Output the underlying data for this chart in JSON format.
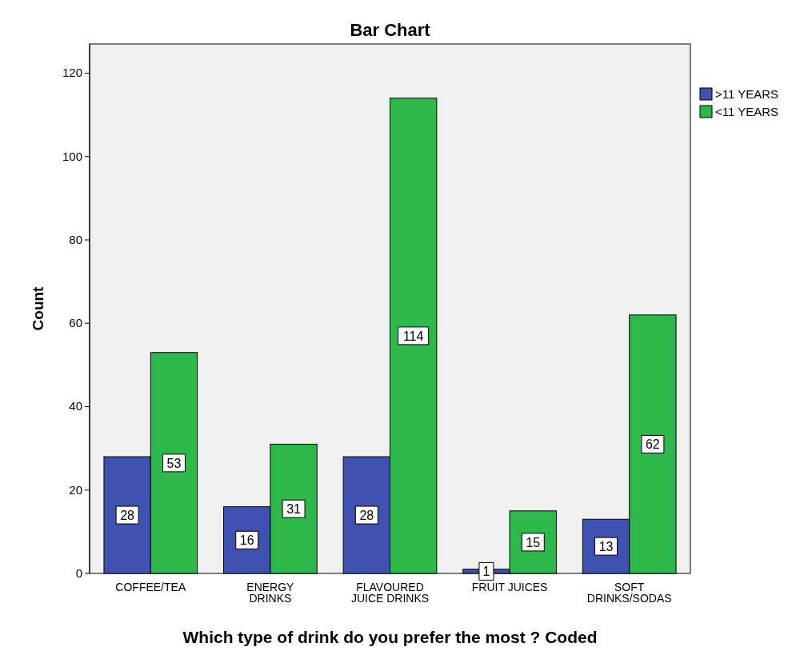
{
  "chart_data": {
    "type": "bar",
    "title": "Bar Chart",
    "xlabel": "Which type of drink do you prefer the most ? Coded",
    "ylabel": "Count",
    "categories": [
      "COFFEE/TEA",
      "ENERGY\nDRINKS",
      "FLAVOURED\nJUICE DRINKS",
      "FRUIT JUICES",
      "SOFT\nDRINKS/SODAS"
    ],
    "series": [
      {
        "name": ">11 YEARS",
        "color": "#3f51b1",
        "values": [
          28,
          16,
          28,
          1,
          13
        ]
      },
      {
        "name": "<11 YEARS",
        "color": "#2db84c",
        "values": [
          53,
          31,
          114,
          15,
          62
        ]
      }
    ],
    "ylim": [
      0,
      127
    ],
    "yticks": [
      0,
      20,
      40,
      60,
      80,
      100,
      120
    ],
    "data_labels": true,
    "legend": "top right",
    "grid": false
  }
}
